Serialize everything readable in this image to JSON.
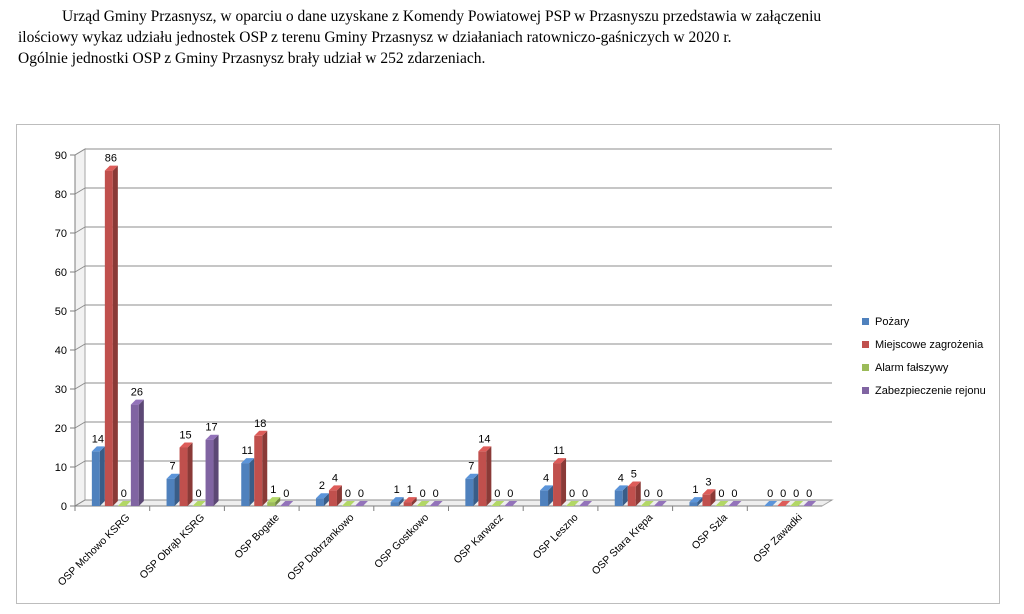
{
  "intro": {
    "line1": "Urząd Gminy Przasnysz, w oparciu o dane uzyskane z Komendy Powiatowej PSP w Przasnyszu przedstawia w załączeniu",
    "line2": "ilościowy wykaz udziału jednostek OSP z terenu Gminy Przasnysz w działaniach ratowniczo-gaśniczych w 2020 r.",
    "line3": "Ogólnie jednostki OSP z Gminy Przasnysz brały udział w 252 zdarzeniach."
  },
  "chart_data": {
    "type": "bar",
    "title": "",
    "xlabel": "",
    "ylabel": "",
    "ylim": [
      0,
      90
    ],
    "yticks": [
      0,
      10,
      20,
      30,
      40,
      50,
      60,
      70,
      80,
      90
    ],
    "grid": true,
    "legend_position": "right",
    "categories": [
      "OSP Mchowo KSRG",
      "OSP Obrąb KSRG",
      "OSP Bogate",
      "OSP Dobrzankowo",
      "OSP Gostkowo",
      "OSP Karwacz",
      "OSP Leszno",
      "OSP Stara Krępa",
      "OSP Szla",
      "OSP Zawadki"
    ],
    "series": [
      {
        "name": "Pożary",
        "color": "#4f81bd",
        "values": [
          14,
          7,
          11,
          2,
          1,
          7,
          4,
          4,
          1,
          0
        ]
      },
      {
        "name": "Miejscowe zagrożenia",
        "color": "#c0504d",
        "values": [
          86,
          15,
          18,
          4,
          1,
          14,
          11,
          5,
          3,
          0
        ]
      },
      {
        "name": "Alarm fałszywy",
        "color": "#9bbb59",
        "values": [
          0,
          0,
          1,
          0,
          0,
          0,
          0,
          0,
          0,
          0
        ]
      },
      {
        "name": "Zabezpieczenie rejonu",
        "color": "#8064a2",
        "values": [
          26,
          17,
          0,
          0,
          0,
          0,
          0,
          0,
          0,
          0
        ]
      }
    ]
  }
}
